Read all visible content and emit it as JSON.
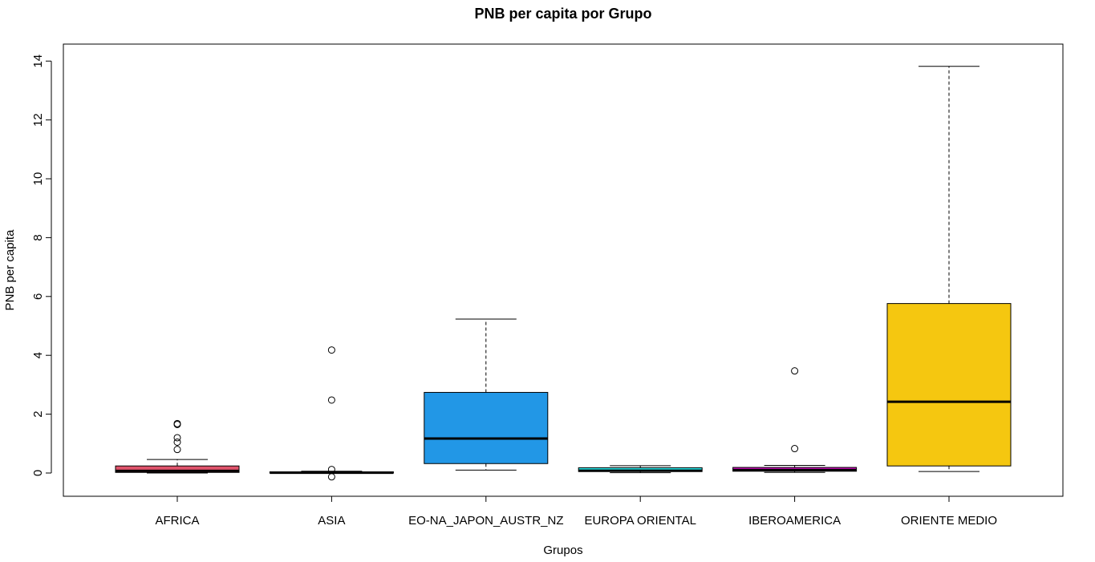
{
  "chart_data": {
    "type": "boxplot",
    "title": "PNB per capita por Grupo",
    "xlabel": "Grupos",
    "ylabel": "PNB per capita",
    "ylim": [
      -0.8,
      14.6
    ],
    "yticks": [
      0,
      2,
      4,
      6,
      8,
      10,
      12,
      14
    ],
    "yticks_labels": [
      "0",
      "2",
      "4",
      "6",
      "8",
      "10",
      "12",
      "14"
    ],
    "grid": false,
    "categories": [
      "AFRICA",
      "ASIA",
      "EO-NA_JAPON_AUSTR_NZ",
      "EUROPA ORIENTAL",
      "IBEROAMERICA",
      "ORIENTE MEDIO"
    ],
    "boxes": [
      {
        "category": "AFRICA",
        "color": "#DF536B",
        "min": 0.0,
        "q1": 0.02,
        "median": 0.07,
        "q3": 0.24,
        "max": 0.46,
        "outliers": [
          0.8,
          1.05,
          1.2,
          1.65,
          1.68
        ]
      },
      {
        "category": "ASIA",
        "color": "#61D04F",
        "min": -0.01,
        "q1": 0.0,
        "median": 0.01,
        "q3": 0.04,
        "max": 0.06,
        "outliers": [
          0.12,
          2.48,
          4.18,
          -0.13
        ]
      },
      {
        "category": "EO-NA_JAPON_AUSTR_NZ",
        "color": "#2297E6",
        "min": 0.1,
        "q1": 0.32,
        "median": 1.17,
        "q3": 2.74,
        "max": 5.23,
        "outliers": []
      },
      {
        "category": "EUROPA ORIENTAL",
        "color": "#28E2E5",
        "min": 0.01,
        "q1": 0.05,
        "median": 0.08,
        "q3": 0.18,
        "max": 0.25,
        "outliers": []
      },
      {
        "category": "IBEROAMERICA",
        "color": "#CD0BBC",
        "min": 0.02,
        "q1": 0.06,
        "median": 0.1,
        "q3": 0.19,
        "max": 0.26,
        "outliers": [
          0.83,
          3.47
        ]
      },
      {
        "category": "ORIENTE MEDIO",
        "color": "#F5C710",
        "min": 0.05,
        "q1": 0.24,
        "median": 2.42,
        "q3": 5.76,
        "max": 13.82,
        "outliers": []
      }
    ]
  }
}
